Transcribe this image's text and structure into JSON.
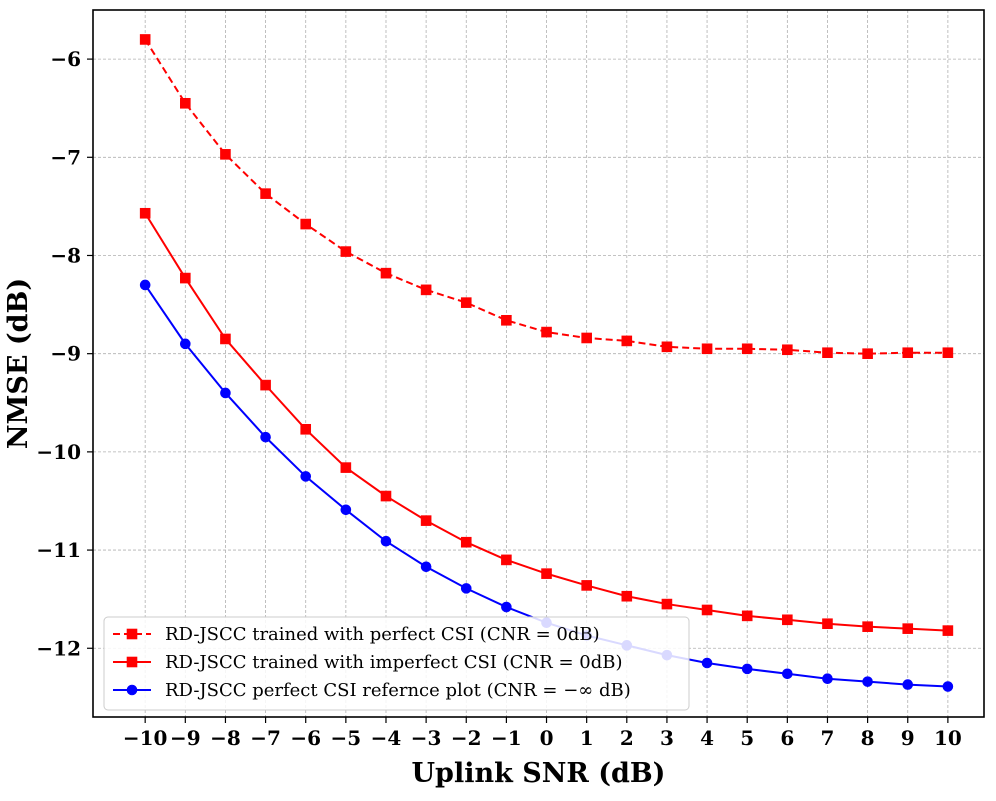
{
  "chart_data": {
    "type": "line",
    "title": "",
    "xlabel": "Uplink SNR (dB)",
    "ylabel": "NMSE (dB)",
    "xlim": [
      -11.3,
      10.9
    ],
    "ylim": [
      -12.7,
      -5.5
    ],
    "grid": true,
    "legend_position": "lower-left",
    "x": [
      -10,
      -9,
      -8,
      -7,
      -6,
      -5,
      -4,
      -3,
      -2,
      -1,
      0,
      1,
      2,
      3,
      4,
      5,
      6,
      7,
      8,
      9,
      10
    ],
    "x_tick_labels": [
      "−10",
      "−9",
      "−8",
      "−7",
      "−6",
      "−5",
      "−4",
      "−3",
      "−2",
      "−1",
      "0",
      "1",
      "2",
      "3",
      "4",
      "5",
      "6",
      "7",
      "8",
      "9",
      "10"
    ],
    "y_ticks": [
      -12,
      -11,
      -10,
      -9,
      -8,
      -7,
      -6
    ],
    "y_tick_labels": [
      "−12",
      "−11",
      "−10",
      "−9",
      "−8",
      "−7",
      "−6"
    ],
    "series": [
      {
        "name": "RD-JSCC trained with perfect CSI (CNR = 0dB)",
        "color": "#ff0000",
        "linestyle": "dashed",
        "marker": "square",
        "values": [
          -5.8,
          -6.45,
          -6.97,
          -7.37,
          -7.68,
          -7.96,
          -8.18,
          -8.35,
          -8.48,
          -8.66,
          -8.78,
          -8.84,
          -8.87,
          -8.93,
          -8.95,
          -8.95,
          -8.96,
          -8.99,
          -9.0,
          -8.99,
          -8.99
        ]
      },
      {
        "name": "RD-JSCC trained with imperfect CSI (CNR = 0dB)",
        "color": "#ff0000",
        "linestyle": "solid",
        "marker": "square",
        "values": [
          -7.57,
          -8.23,
          -8.85,
          -9.32,
          -9.77,
          -10.16,
          -10.45,
          -10.7,
          -10.92,
          -11.1,
          -11.24,
          -11.36,
          -11.47,
          -11.55,
          -11.61,
          -11.67,
          -11.71,
          -11.75,
          -11.78,
          -11.8,
          -11.82
        ]
      },
      {
        "name": "RD-JSCC perfect CSI refernce plot (CNR = −∞ dB)",
        "color": "#0000ff",
        "linestyle": "solid",
        "marker": "circle",
        "values": [
          -8.3,
          -8.9,
          -9.4,
          -9.85,
          -10.25,
          -10.59,
          -10.91,
          -11.17,
          -11.39,
          -11.58,
          -11.74,
          -11.87,
          -11.97,
          -12.07,
          -12.15,
          -12.21,
          -12.26,
          -12.31,
          -12.34,
          -12.37,
          -12.39
        ]
      }
    ]
  }
}
